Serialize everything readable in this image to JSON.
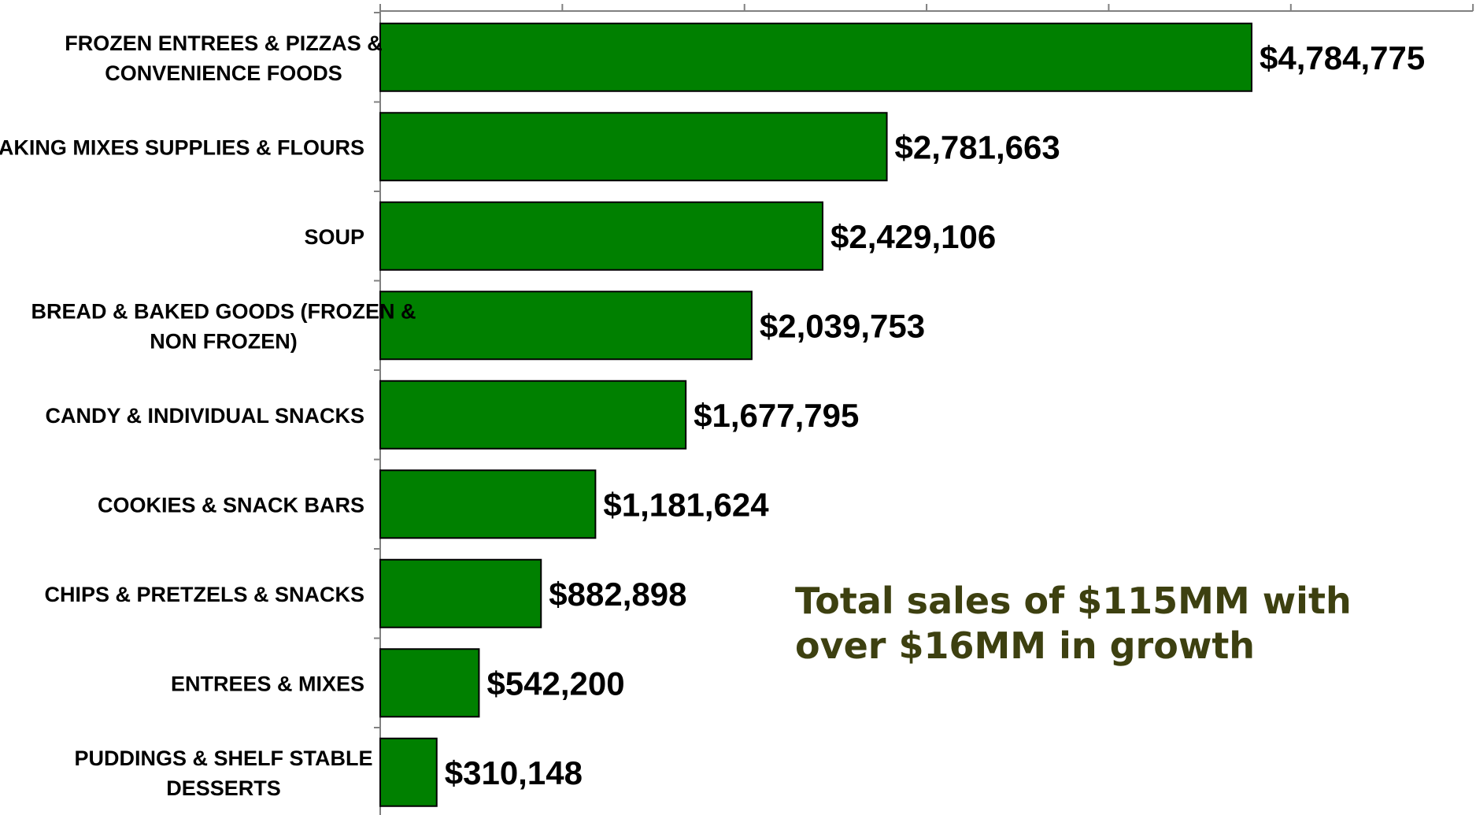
{
  "colors": {
    "bar_fill": "#008000",
    "bar_stroke": "#000000",
    "axis": "#808080",
    "annotation_text": "#3d4010"
  },
  "annotation": {
    "line1": "Total sales of $115MM with",
    "line2": "over $16MM in growth"
  },
  "chart_data": {
    "type": "bar",
    "orientation": "horizontal",
    "categories": [
      [
        "FROZEN ENTREES & PIZZAS &",
        "CONVENIENCE FOODS"
      ],
      [
        "BAKING MIXES SUPPLIES & FLOURS"
      ],
      [
        "SOUP"
      ],
      [
        "BREAD & BAKED GOODS (FROZEN &",
        "NON FROZEN)"
      ],
      [
        "CANDY & INDIVIDUAL SNACKS"
      ],
      [
        "COOKIES & SNACK BARS"
      ],
      [
        "CHIPS & PRETZELS & SNACKS"
      ],
      [
        "ENTREES & MIXES"
      ],
      [
        "PUDDINGS & SHELF STABLE",
        "DESSERTS"
      ]
    ],
    "values": [
      4784775,
      2781663,
      2429106,
      2039753,
      1677795,
      1181624,
      882898,
      542200,
      310148
    ],
    "value_labels": [
      "$4,784,775",
      "$2,781,663",
      "$2,429,106",
      "$2,039,753",
      "$1,677,795",
      "$1,181,624",
      "$882,898",
      "$542,200",
      "$310,148"
    ],
    "xlim": [
      0,
      6000000
    ],
    "x_tick_step": 1000000,
    "grid": false,
    "legend": "none",
    "title": "",
    "xlabel": "",
    "ylabel": ""
  }
}
